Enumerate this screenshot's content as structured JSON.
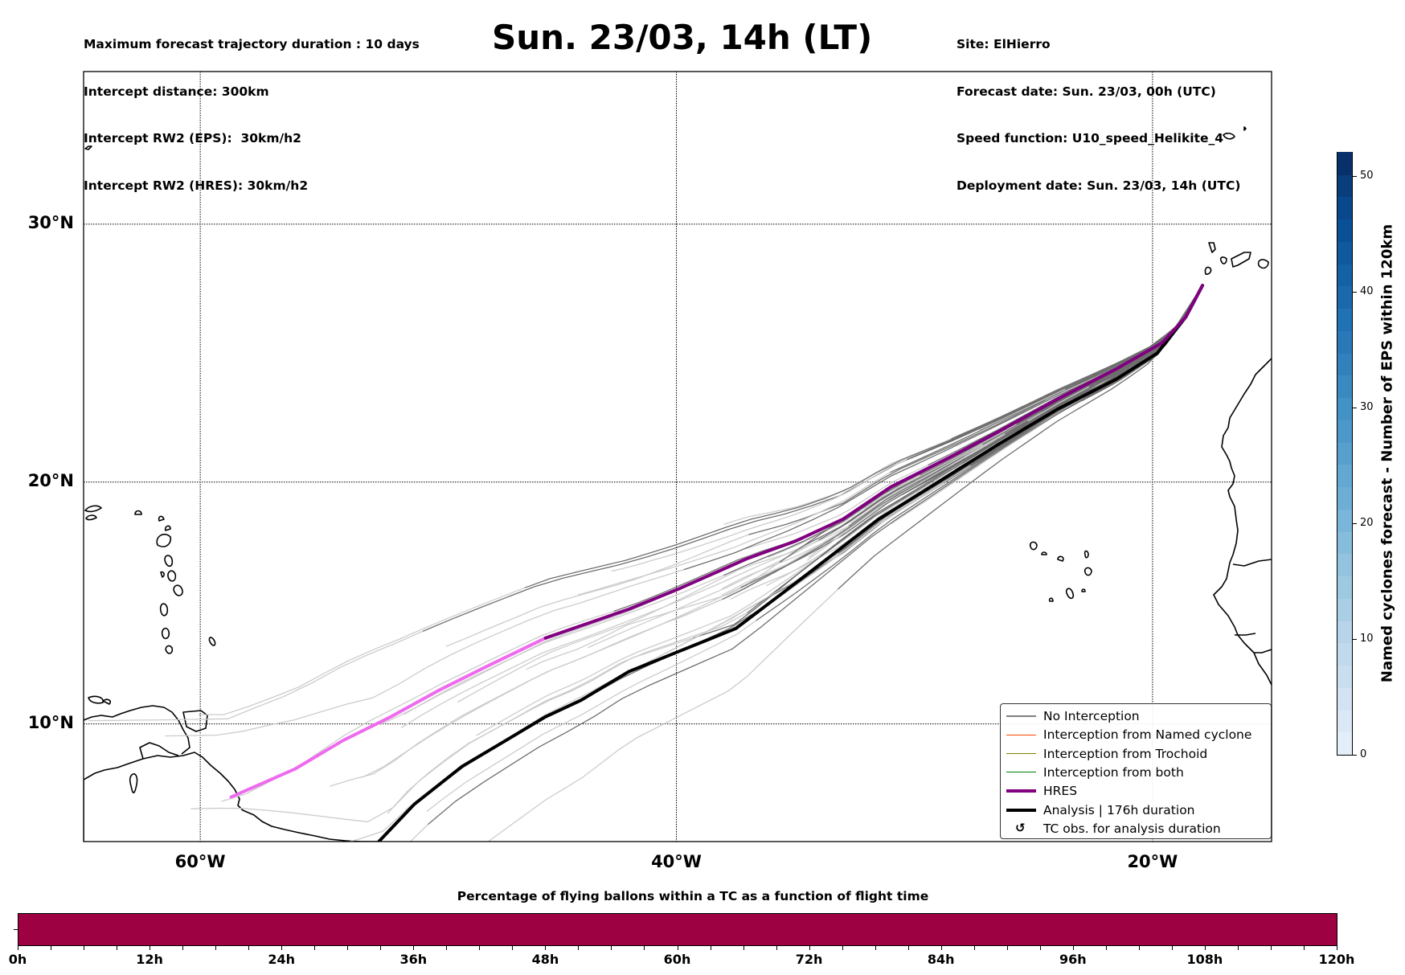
{
  "header": {
    "left_lines": [
      "Maximum forecast trajectory duration : 10 days",
      "Intercept distance: 300km",
      "Intercept RW2 (EPS):  30km/h2",
      "Intercept RW2 (HRES): 30km/h2"
    ],
    "title": "Sun. 23/03, 14h (LT)",
    "right_lines": [
      "Site: ElHierro",
      "Forecast date: Sun. 23/03, 00h (UTC)",
      "Speed function: U10_speed_Helikite_4",
      "Deployment date: Sun. 23/03, 14h (UTC)"
    ]
  },
  "map": {
    "lon_range": [
      -64.9,
      -15.0
    ],
    "lat_range": [
      5.0,
      35.5
    ],
    "lat_ticks": [
      {
        "value": 30,
        "label": "30°N"
      },
      {
        "value": 20,
        "label": "20°N"
      },
      {
        "value": 10,
        "label": "10°N"
      }
    ],
    "lon_ticks": [
      {
        "value": -60,
        "label": "60°W"
      },
      {
        "value": -40,
        "label": "40°W"
      },
      {
        "value": -20,
        "label": "20°W"
      }
    ],
    "gridlines": "dotted",
    "launch_site": {
      "lon": -17.9,
      "lat": 27.7
    },
    "trajectories": {
      "hres": {
        "color_flying": "#800080",
        "color_landed": "#ee6aee",
        "transition_lon": -45.5,
        "points": [
          [
            -17.9,
            27.7
          ],
          [
            -18.6,
            26.5
          ],
          [
            -19.6,
            25.5
          ],
          [
            -21.5,
            24.5
          ],
          [
            -24,
            23.3
          ],
          [
            -26.5,
            22.0
          ],
          [
            -28.5,
            21.0
          ],
          [
            -31,
            19.8
          ],
          [
            -33,
            18.5
          ],
          [
            -35,
            17.6
          ],
          [
            -37,
            16.9
          ],
          [
            -40,
            15.6
          ],
          [
            -42,
            14.8
          ],
          [
            -45.5,
            13.6
          ],
          [
            -48,
            12.4
          ],
          [
            -50,
            11.4
          ],
          [
            -52,
            10.3
          ],
          [
            -54,
            9.3
          ],
          [
            -56,
            8.1
          ],
          [
            -58.7,
            6.9
          ]
        ]
      },
      "analysis": {
        "color": "#000000",
        "points": [
          [
            -17.9,
            27.7
          ],
          [
            -18.6,
            26.5
          ],
          [
            -19.8,
            25.1
          ],
          [
            -21.5,
            24.1
          ],
          [
            -24,
            22.9
          ],
          [
            -26.5,
            21.5
          ],
          [
            -29,
            20.0
          ],
          [
            -31.5,
            18.5
          ],
          [
            -33.5,
            17.0
          ],
          [
            -35.5,
            15.5
          ],
          [
            -37.5,
            14.0
          ],
          [
            -40,
            13.0
          ],
          [
            -42,
            12.2
          ],
          [
            -44,
            11.0
          ],
          [
            -45.5,
            10.3
          ],
          [
            -47,
            9.4
          ],
          [
            -49,
            8.2
          ],
          [
            -51,
            6.6
          ],
          [
            -52.5,
            5.0
          ]
        ]
      },
      "ensemble": {
        "members": 50,
        "color_flying": "#6e6e6e",
        "color_landed": "#cccccc",
        "seed": 7
      }
    }
  },
  "legend": {
    "items": [
      {
        "label": "No Interception",
        "color": "#808080",
        "width": 1.2,
        "kind": "line"
      },
      {
        "label": "Interception from Named cyclone",
        "color": "#ff4500",
        "width": 1.2,
        "kind": "line"
      },
      {
        "label": "Interception from Trochoid",
        "color": "#808000",
        "width": 1.2,
        "kind": "line"
      },
      {
        "label": "Interception from both",
        "color": "#008000",
        "width": 1.2,
        "kind": "line"
      },
      {
        "label": "HRES",
        "color": "#800080",
        "width": 4,
        "kind": "line"
      },
      {
        "label": "Analysis | 176h duration",
        "color": "#000000",
        "width": 4,
        "kind": "line"
      },
      {
        "label": "TC obs. for analysis duration",
        "symbol": "↺",
        "kind": "symbol"
      }
    ]
  },
  "colorbar": {
    "title": "Named cyclones forecast - Number of EPS within 120km",
    "min": 0,
    "max": 52,
    "ticks": [
      0,
      10,
      20,
      30,
      40,
      50
    ],
    "colors": [
      "#e3eef8",
      "#dbe8f5",
      "#d3e3f3",
      "#cadef0",
      "#c1d9ed",
      "#b7d4ea",
      "#aacfe5",
      "#9ecae1",
      "#93c3df",
      "#87bddc",
      "#7ab6d9",
      "#6daed5",
      "#62a8d2",
      "#57a0ce",
      "#4d98ca",
      "#4292c6",
      "#3a89c1",
      "#3181bd",
      "#2979b9",
      "#2171b5",
      "#1b69ad",
      "#1561a6",
      "#0f599e",
      "#0a5096",
      "#08488b",
      "#083e7c",
      "#08306b"
    ]
  },
  "flight_time_bar": {
    "title": "Percentage of flying ballons within a TC as a function of flight time",
    "range_hours": [
      0,
      120
    ],
    "ticks": [
      "0h",
      "12h",
      "24h",
      "36h",
      "48h",
      "60h",
      "72h",
      "84h",
      "96h",
      "108h",
      "120h"
    ],
    "minor_tick_step_hours": 3,
    "fill_fraction": 1.0,
    "fill_color": "#9e0142"
  }
}
